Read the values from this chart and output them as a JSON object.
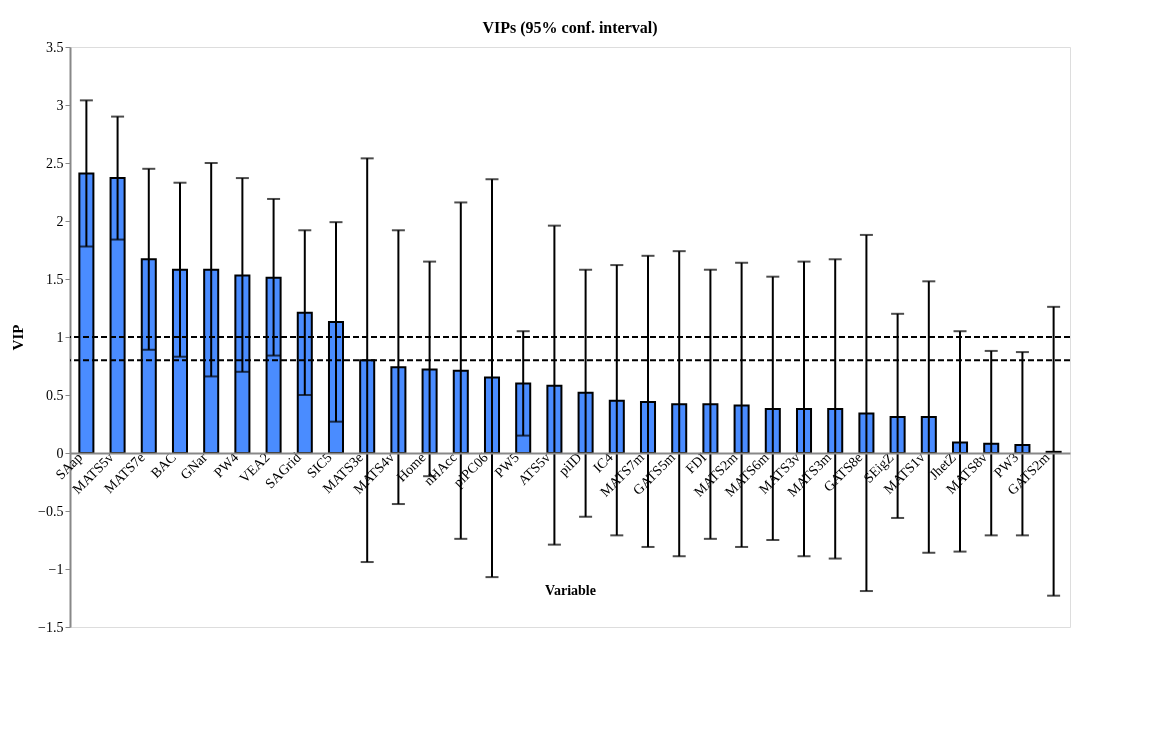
{
  "chart_data": {
    "type": "bar",
    "title": "VIPs (95% conf. interval)",
    "xlabel": "Variable",
    "ylabel": "VIP",
    "categories": [
      "SAap",
      "MATS5v",
      "MATS7e",
      "BAC",
      "GNar",
      "PW4",
      "VEA2",
      "SAGrid",
      "SIC5",
      "MATS3e",
      "MATS4v",
      "Home",
      "nHAcc",
      "piPC06",
      "PW5",
      "ATS5v",
      "piID",
      "IC4",
      "MATS7m",
      "GATS5m",
      "FDI",
      "MATS2m",
      "MATS6m",
      "MATS3v",
      "MATS3m",
      "GATS8e",
      "SEigZ",
      "MATS1v",
      "JhetZ",
      "MATS8v",
      "PW3",
      "GATS2m"
    ],
    "series": [
      {
        "color": "#4a8cff",
        "values": [
          2.41,
          2.37,
          1.67,
          1.58,
          1.58,
          1.53,
          1.51,
          1.21,
          1.13,
          0.8,
          0.74,
          0.72,
          0.71,
          0.65,
          0.6,
          0.58,
          0.52,
          0.45,
          0.44,
          0.42,
          0.42,
          0.41,
          0.38,
          0.38,
          0.38,
          0.34,
          0.31,
          0.31,
          0.09,
          0.08,
          0.07,
          0.01
        ],
        "errors": [
          [
            1.78,
            3.04
          ],
          [
            1.84,
            2.9
          ],
          [
            0.89,
            2.45
          ],
          [
            0.83,
            2.33
          ],
          [
            0.66,
            2.5
          ],
          [
            0.7,
            2.37
          ],
          [
            0.84,
            2.19
          ],
          [
            0.5,
            1.92
          ],
          [
            0.27,
            1.99
          ],
          [
            -0.94,
            2.54
          ],
          [
            -0.44,
            1.92
          ],
          [
            -0.2,
            1.65
          ],
          [
            -0.74,
            2.16
          ],
          [
            -1.07,
            2.36
          ],
          [
            0.15,
            1.05
          ],
          [
            -0.79,
            1.96
          ],
          [
            -0.55,
            1.58
          ],
          [
            -0.71,
            1.62
          ],
          [
            -0.81,
            1.7
          ],
          [
            -0.89,
            1.74
          ],
          [
            -0.74,
            1.58
          ],
          [
            -0.81,
            1.64
          ],
          [
            -0.75,
            1.52
          ],
          [
            -0.89,
            1.65
          ],
          [
            -0.91,
            1.67
          ],
          [
            -1.19,
            1.88
          ],
          [
            -0.56,
            1.2
          ],
          [
            -0.86,
            1.48
          ],
          [
            -0.85,
            1.05
          ],
          [
            -0.71,
            0.88
          ],
          [
            -0.71,
            0.87
          ],
          [
            -1.23,
            1.26
          ]
        ]
      }
    ],
    "ylim": [
      -1.5,
      3.5
    ],
    "yticks": [
      -1.5,
      -1,
      -0.5,
      0,
      0.5,
      1,
      1.5,
      2,
      2.5,
      3,
      3.5
    ],
    "ref_lines": [
      {
        "axis": "y",
        "value": 1,
        "line_style": "dashed"
      },
      {
        "axis": "y",
        "value": 0.8,
        "line_style": "dashed"
      }
    ],
    "grid": false
  }
}
